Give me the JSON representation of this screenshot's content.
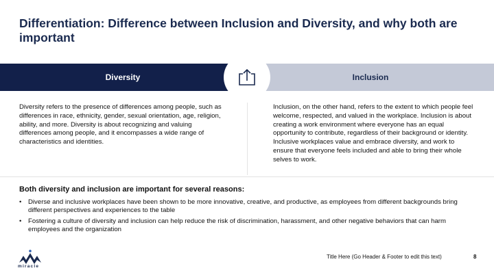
{
  "slide": {
    "title": "Differentiation: Difference between Inclusion and Diversity, and why both are important",
    "diversity_label": "Diversity",
    "inclusion_label": "Inclusion",
    "center_icon": "share-upload-icon",
    "diversity_text": "Diversity refers to the presence of differences among people, such as differences in race, ethnicity, gender, sexual orientation, age, religion, ability, and more. Diversity is about recognizing and valuing differences among people, and it encompasses a wide range of characteristics and identities.",
    "inclusion_text": "Inclusion, on the other hand, refers to the extent to which people feel welcome, respected, and valued in the workplace. Inclusion is about creating a work environment where everyone has an equal opportunity to contribute, regardless of their background or identity. Inclusive workplaces value and embrace diversity, and work to ensure that everyone feels included and able to bring their whole selves to work.",
    "reasons_heading": "Both diversity and inclusion are important for several reasons:",
    "reasons": [
      "Diverse and inclusive workplaces have been shown to be more innovative, creative, and productive, as employees from different backgrounds bring different perspectives and experiences to the table",
      "Fostering a culture of diversity and inclusion can help reduce the risk of discrimination, harassment, and other negative behaviors that can harm employees and the organization"
    ],
    "bullet_char": "•"
  },
  "footer": {
    "text": "Title Here (Go Header & Footer to edit this text)",
    "page_number": "8",
    "logo_text": "miracle",
    "logo_icon": "miracle-logo-icon"
  },
  "colors": {
    "navy": "#12204a",
    "light_band": "#c4c9d7",
    "title": "#1a2a4f"
  }
}
